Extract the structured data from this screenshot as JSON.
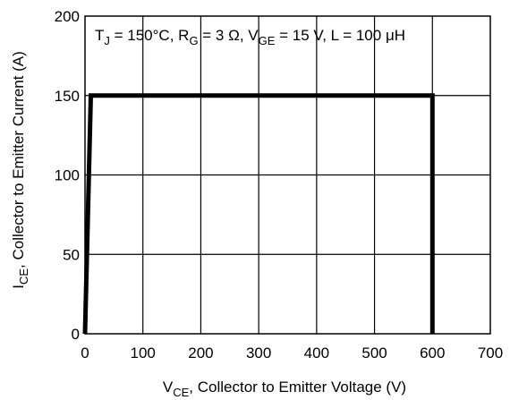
{
  "chart_data": {
    "type": "line",
    "condition_text": {
      "tj_main": "T",
      "tj_sub": "J",
      "tj_val": " = 150°C, ",
      "rg_main": "R",
      "rg_sub": "G",
      "rg_val": " = 3 Ω, ",
      "vge_main": "V",
      "vge_sub": "GE",
      "vge_val": " = 15 V, L = 100 μH"
    },
    "xlabel": {
      "main": "V",
      "sub": "CE",
      "rest": ", Collector to Emitter Voltage (V)"
    },
    "ylabel": {
      "main": "I",
      "sub": "CE",
      "rest": ", Collector to Emitter Current (A)"
    },
    "xlim": [
      0,
      700
    ],
    "ylim": [
      0,
      200
    ],
    "xticks": [
      "0",
      "100",
      "200",
      "300",
      "400",
      "500",
      "600",
      "700"
    ],
    "yticks": [
      "0",
      "50",
      "100",
      "150",
      "200"
    ],
    "grid": true,
    "series": [
      {
        "x": [
          0,
          10,
          600,
          600
        ],
        "y": [
          0,
          150,
          150,
          0
        ],
        "color": "#000000"
      }
    ]
  }
}
